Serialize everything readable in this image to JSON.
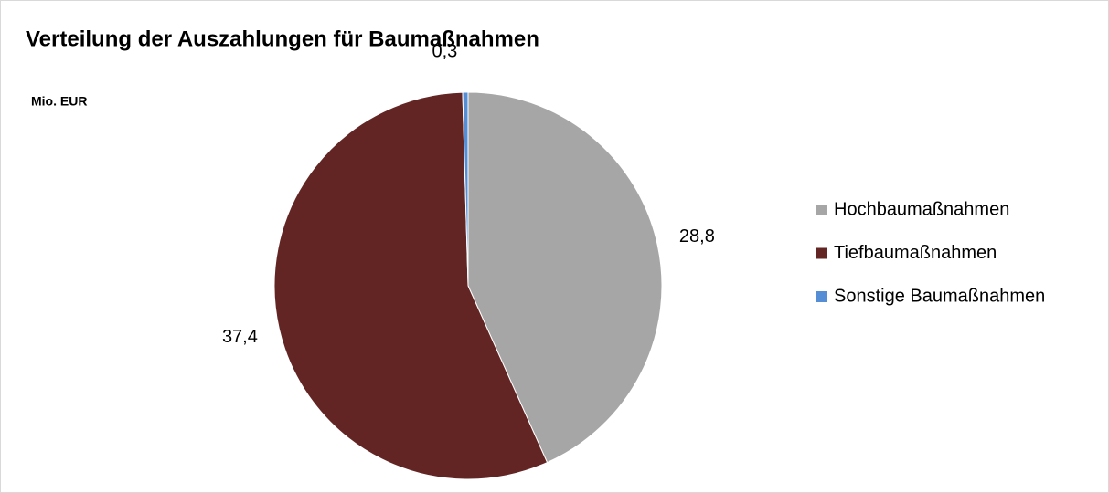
{
  "chart_data": {
    "type": "pie",
    "title": "Verteilung der Auszahlungen für Baumaßnahmen",
    "subtitle": "Mio. EUR",
    "categories": [
      "Hochbaumaßnahmen",
      "Tiefbaumaßnahmen",
      "Sonstige Baumaßnahmen"
    ],
    "values": [
      28.8,
      37.4,
      0.3
    ],
    "value_labels": [
      "28,8",
      "37,4",
      "0,3"
    ],
    "colors": [
      "#a6a6a6",
      "#632523",
      "#558ed5"
    ],
    "legend": "right"
  }
}
